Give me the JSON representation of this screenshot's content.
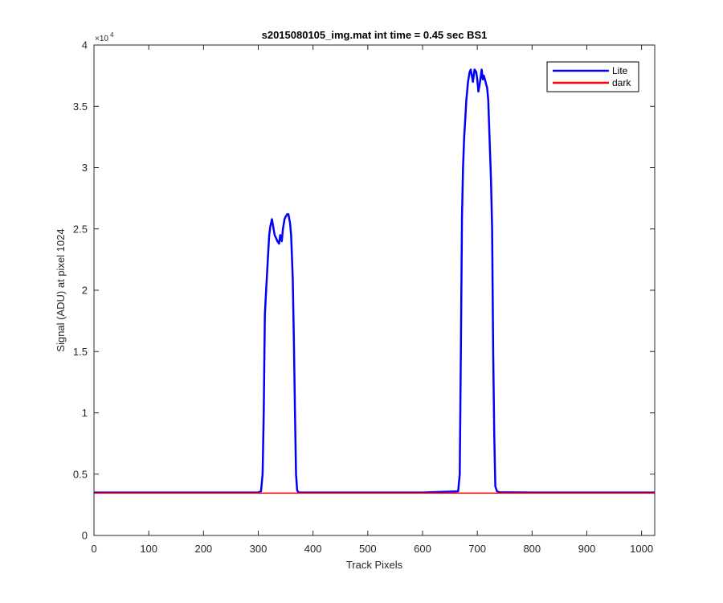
{
  "chart_data": {
    "type": "line",
    "title": "s2015080105_img.mat int time = 0.45 sec   BS1",
    "xlabel": "Track Pixels",
    "ylabel": "Signal (ADU) at pixel 1024",
    "xlim": [
      0,
      1024
    ],
    "ylim": [
      0,
      40000
    ],
    "y_exponent_label": "×10",
    "y_exponent_power": "4",
    "x_ticks": [
      0,
      100,
      200,
      300,
      400,
      500,
      600,
      700,
      800,
      900,
      1000
    ],
    "x_tick_labels": [
      "0",
      "100",
      "200",
      "300",
      "400",
      "500",
      "600",
      "700",
      "800",
      "900",
      "1000"
    ],
    "y_ticks": [
      0,
      5000,
      10000,
      15000,
      20000,
      25000,
      30000,
      35000,
      40000
    ],
    "y_tick_labels": [
      "0",
      "0.5",
      "1",
      "1.5",
      "2",
      "2.5",
      "3",
      "3.5",
      "4"
    ],
    "grid": false,
    "legend_position": "top-right",
    "series": [
      {
        "name": "Lite",
        "color": "#0000ff",
        "x": [
          0,
          100,
          200,
          300,
          305,
          308,
          310,
          312,
          315,
          318,
          320,
          322,
          325,
          328,
          330,
          333,
          335,
          338,
          340,
          343,
          345,
          348,
          350,
          353,
          355,
          358,
          360,
          363,
          365,
          367,
          369,
          371,
          373,
          376,
          380,
          500,
          600,
          665,
          668,
          670,
          672,
          674,
          676,
          678,
          680,
          683,
          686,
          688,
          690,
          692,
          695,
          698,
          700,
          702,
          705,
          708,
          710,
          712,
          715,
          718,
          720,
          722,
          725,
          727,
          729,
          731,
          733,
          736,
          740,
          800,
          900,
          1024
        ],
        "y": [
          3500,
          3500,
          3500,
          3510,
          3600,
          5000,
          10000,
          18000,
          20500,
          23000,
          24500,
          25200,
          25800,
          25000,
          24500,
          24200,
          24000,
          23800,
          24500,
          24000,
          25000,
          25800,
          26000,
          26200,
          26200,
          25500,
          24500,
          21000,
          16000,
          10000,
          5000,
          3700,
          3520,
          3500,
          3500,
          3500,
          3500,
          3600,
          5000,
          15000,
          26000,
          30000,
          32500,
          34000,
          35500,
          37000,
          37800,
          38000,
          37500,
          37000,
          38000,
          37800,
          37200,
          36200,
          37000,
          38000,
          37200,
          37500,
          37000,
          36500,
          35500,
          33000,
          29000,
          25000,
          15000,
          8000,
          4000,
          3600,
          3520,
          3500,
          3500,
          3500
        ]
      },
      {
        "name": "dark",
        "color": "#ff0000",
        "x": [
          0,
          1024
        ],
        "y": [
          3450,
          3450
        ]
      }
    ]
  }
}
